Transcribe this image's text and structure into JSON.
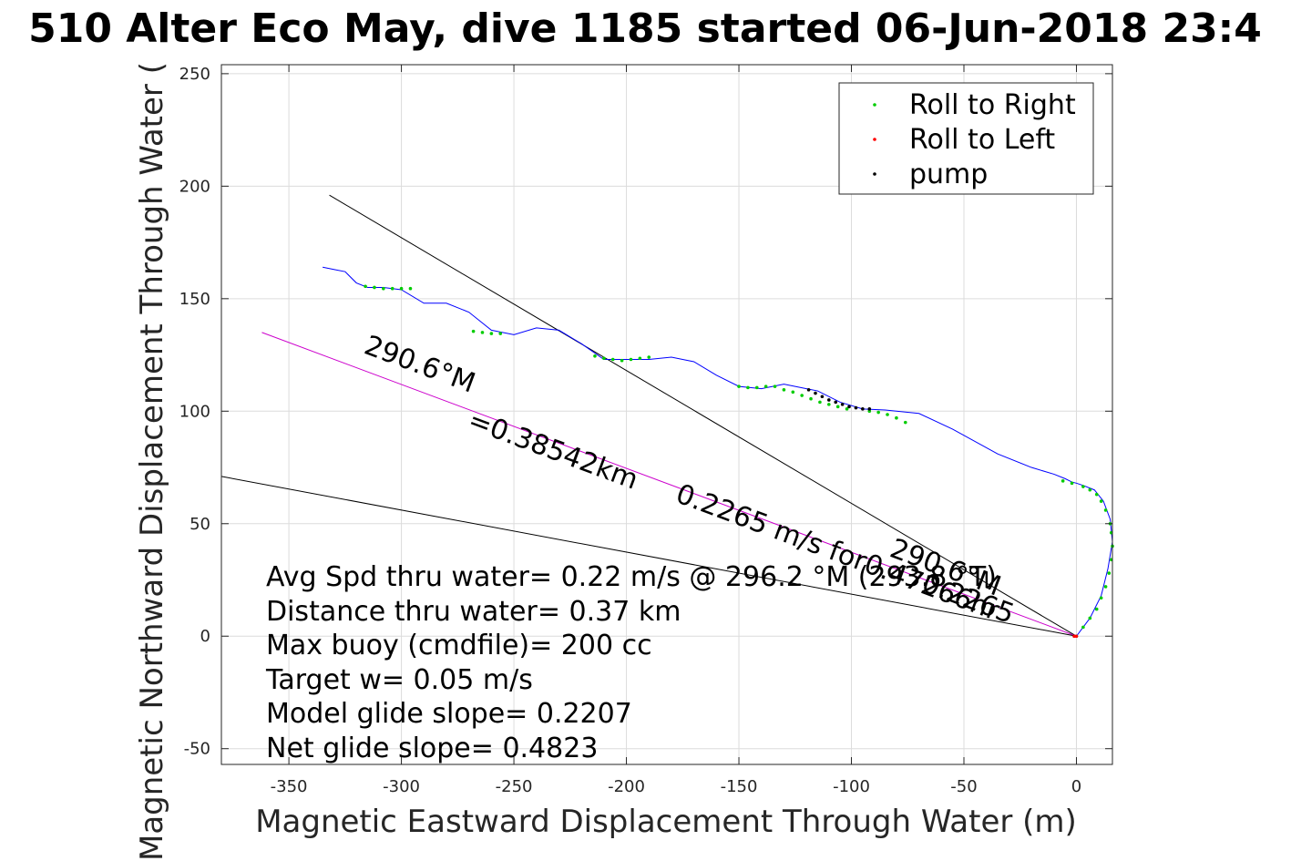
{
  "chart_data": {
    "type": "scatter",
    "title": "510 Alter Eco May, dive 1185 started 06-Jun-2018 23:4",
    "xlabel": "Magnetic Eastward Displacement Through Water (m)",
    "ylabel": "Magnetic Northward Displacement Through Water (",
    "xlim": [
      -380,
      16
    ],
    "ylim": [
      -57,
      254
    ],
    "xticks": [
      -350,
      -300,
      -250,
      -200,
      -150,
      -100,
      -50,
      0
    ],
    "yticks": [
      -50,
      0,
      50,
      100,
      150,
      200,
      250
    ],
    "grid": true,
    "legend_position": "top-right",
    "legend": [
      "Roll to Right",
      "Roll to Left",
      "pump"
    ],
    "colors": {
      "track": "#0000ff",
      "roll_right": "#00cc00",
      "roll_left": "#ff0000",
      "pump": "#000000",
      "heading_line": "#000000",
      "course_line": "#cc00cc",
      "current_line": "#000000"
    },
    "track": {
      "x": [
        0,
        6,
        11,
        14,
        16,
        15,
        12,
        8,
        3,
        0,
        -2,
        -5,
        -10,
        -20,
        -35,
        -55,
        -70,
        -80,
        -85,
        -95,
        -105,
        -115,
        -120,
        -130,
        -140,
        -150,
        -160,
        -170,
        -180,
        -190,
        -200,
        -210,
        -220,
        -230,
        -240,
        -250,
        -260,
        -270,
        -280,
        -290,
        -300,
        -308,
        -315,
        -320,
        -325,
        -330,
        -335
      ],
      "y": [
        0,
        8,
        18,
        30,
        42,
        52,
        60,
        65,
        67,
        68,
        68.5,
        70,
        72,
        75,
        81,
        92,
        99,
        100,
        100.5,
        101,
        104,
        109,
        110,
        112,
        110,
        111,
        116,
        122,
        124,
        123,
        123,
        123,
        130,
        136,
        137,
        134,
        136,
        144,
        148,
        148,
        154,
        155,
        155,
        157,
        162,
        163,
        164
      ]
    },
    "roll_right": {
      "x": [
        0,
        3,
        6,
        9,
        11,
        13,
        14.5,
        15.5,
        16,
        15.5,
        15,
        13,
        11,
        9,
        6,
        3,
        -2,
        -6,
        -76,
        -80,
        -84,
        -88,
        -92,
        -102,
        -106,
        -110,
        -114,
        -118,
        -122,
        -126,
        -130,
        -134,
        -138,
        -142,
        -146,
        -150,
        -190,
        -194,
        -198,
        -202,
        -206,
        -210,
        -214,
        -256,
        -260,
        -264,
        -268,
        -296,
        -300,
        -304,
        -308,
        -312,
        -316
      ],
      "y": [
        0,
        4,
        8,
        12,
        17,
        22,
        28,
        34,
        40,
        46,
        50,
        56,
        60,
        63,
        65,
        66.5,
        68,
        69,
        95,
        97,
        98.5,
        99.5,
        100,
        101,
        102,
        103,
        104,
        105.5,
        107,
        108.5,
        109.5,
        111,
        111,
        110.5,
        110.5,
        111,
        124,
        123.5,
        123,
        122.5,
        123,
        123.5,
        124.5,
        134.5,
        134.5,
        135,
        135.5,
        154.5,
        154.5,
        154.5,
        154.5,
        155,
        155.5
      ]
    },
    "roll_left": {
      "x": [
        0,
        -1
      ],
      "y": [
        0,
        0
      ]
    },
    "pump": {
      "x": [
        -119,
        -116,
        -113,
        -110,
        -107,
        -104,
        -101,
        -98,
        -95,
        -92
      ],
      "y": [
        109.5,
        108,
        106.5,
        105,
        104,
        103,
        102,
        101.5,
        101,
        101
      ]
    },
    "lines": [
      {
        "name": "heading",
        "x": [
          0,
          -332
        ],
        "y": [
          0,
          196
        ]
      },
      {
        "name": "course",
        "x": [
          0,
          -362
        ],
        "y": [
          0,
          135
        ]
      },
      {
        "name": "current",
        "x": [
          0,
          -380
        ],
        "y": [
          0,
          71
        ]
      }
    ],
    "annotations": {
      "heading_label": "290.6°M",
      "distance_label": "=0.38542km",
      "speed_label": "0.2265 m/s for0.47266hr",
      "current_label": "290.6°M",
      "current_speed_label": "0.2265"
    }
  },
  "summary_text": [
    "Avg Spd thru water=  0.22 m/s @ 296.2 °M (293.8 °T)",
    "Distance thru water=  0.37 km",
    "Max buoy (cmdfile)= 200 cc",
    "Target w= 0.05 m/s",
    "Model glide slope= 0.2207",
    "Net glide slope= 0.4823"
  ]
}
